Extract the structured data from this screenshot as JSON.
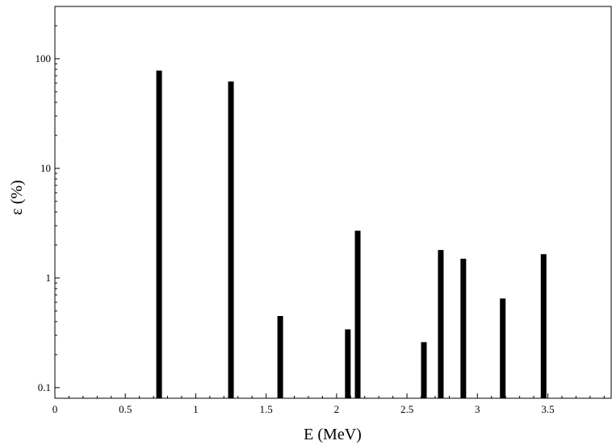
{
  "chart_data": {
    "type": "bar",
    "title": "",
    "xlabel": "E (MeV)",
    "ylabel": "ε (%)",
    "y_scale": "log",
    "xlim": [
      0,
      3.95
    ],
    "ylim": [
      0.08,
      300
    ],
    "grid": false,
    "legend": "none",
    "bar_color": "#000000",
    "x": [
      0.74,
      1.25,
      1.6,
      2.08,
      2.15,
      2.62,
      2.74,
      2.9,
      3.18,
      3.47
    ],
    "values": [
      78,
      62,
      0.45,
      0.34,
      2.7,
      0.26,
      1.8,
      1.5,
      0.65,
      1.65
    ],
    "x_ticks": [
      {
        "value": 0,
        "label": "0"
      },
      {
        "value": 0.5,
        "label": "0.5"
      },
      {
        "value": 1,
        "label": "1"
      },
      {
        "value": 1.5,
        "label": "1.5"
      },
      {
        "value": 2,
        "label": "2"
      },
      {
        "value": 2.5,
        "label": "2.5"
      },
      {
        "value": 3,
        "label": "3"
      },
      {
        "value": 3.5,
        "label": "3.5"
      }
    ],
    "y_ticks": [
      {
        "value": 0.1,
        "label": "0.1"
      },
      {
        "value": 1,
        "label": "1"
      },
      {
        "value": 10,
        "label": "10"
      },
      {
        "value": 100,
        "label": "100"
      }
    ]
  }
}
